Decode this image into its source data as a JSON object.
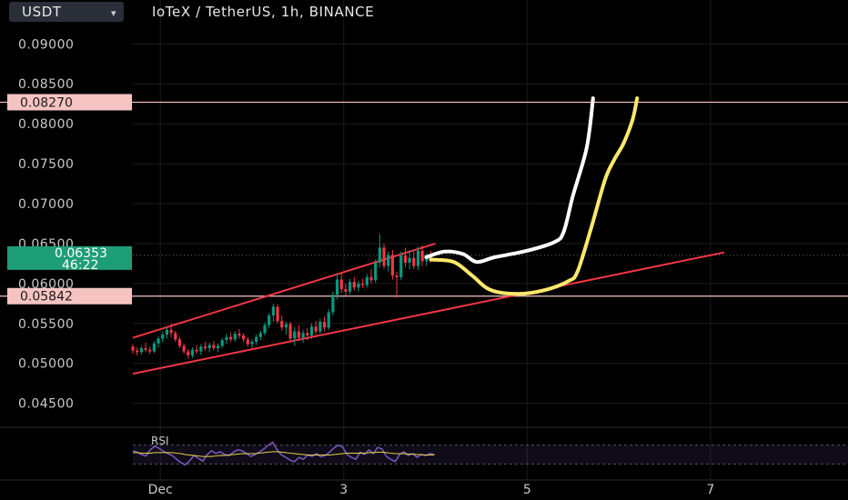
{
  "header": {
    "currency_button": "USDT",
    "title": "IoTeX / TetherUS, 1h, BINANCE"
  },
  "chart_data": {
    "type": "candlestick",
    "title": "IoTeX / TetherUS, 1h, BINANCE",
    "y_axis": {
      "range": [
        0.042,
        0.0955
      ],
      "ticks": [
        "0.04500",
        "0.05000",
        "0.05500",
        "0.06000",
        "0.06500",
        "0.07000",
        "0.07500",
        "0.08000",
        "0.08500",
        "0.09000"
      ]
    },
    "x_axis": {
      "range": [
        0.7,
        8.5
      ],
      "ticks": [
        {
          "x": 1,
          "label": "Dec"
        },
        {
          "x": 3,
          "label": "3"
        },
        {
          "x": 5,
          "label": "5"
        },
        {
          "x": 7,
          "label": "7"
        }
      ]
    },
    "grid": true,
    "horizontal_levels": [
      {
        "value": 0.0827,
        "label": "0.08270",
        "color": "#f5c4c2"
      },
      {
        "value": 0.05842,
        "label": "0.05842",
        "color": "#f5c4c2"
      }
    ],
    "last_price": {
      "value": 0.06353,
      "label": "0.06353",
      "countdown": "46:22",
      "color": "#1e9e77"
    },
    "candles_ohlc": [
      [
        0.0521,
        0.0524,
        0.0512,
        0.0516
      ],
      [
        0.0516,
        0.052,
        0.051,
        0.0514
      ],
      [
        0.0514,
        0.0522,
        0.0511,
        0.0519
      ],
      [
        0.0519,
        0.0526,
        0.0514,
        0.0517
      ],
      [
        0.0517,
        0.0521,
        0.0512,
        0.0515
      ],
      [
        0.0515,
        0.0528,
        0.0513,
        0.0525
      ],
      [
        0.0525,
        0.0534,
        0.052,
        0.0531
      ],
      [
        0.0531,
        0.054,
        0.0526,
        0.0536
      ],
      [
        0.0536,
        0.0546,
        0.0531,
        0.0542
      ],
      [
        0.0542,
        0.055,
        0.0533,
        0.0538
      ],
      [
        0.0538,
        0.0541,
        0.0527,
        0.053
      ],
      [
        0.053,
        0.0533,
        0.0519,
        0.0522
      ],
      [
        0.0522,
        0.0525,
        0.0512,
        0.0515
      ],
      [
        0.0515,
        0.0518,
        0.0506,
        0.051
      ],
      [
        0.051,
        0.052,
        0.0507,
        0.0517
      ],
      [
        0.0517,
        0.0523,
        0.0512,
        0.0515
      ],
      [
        0.0515,
        0.0524,
        0.0511,
        0.0521
      ],
      [
        0.0521,
        0.0527,
        0.0516,
        0.0519
      ],
      [
        0.0519,
        0.0526,
        0.0514,
        0.0523
      ],
      [
        0.0523,
        0.0528,
        0.0516,
        0.0519
      ],
      [
        0.0519,
        0.0525,
        0.0514,
        0.0522
      ],
      [
        0.0522,
        0.0532,
        0.0519,
        0.0529
      ],
      [
        0.0529,
        0.0537,
        0.0524,
        0.0533
      ],
      [
        0.0533,
        0.0539,
        0.0527,
        0.053
      ],
      [
        0.053,
        0.054,
        0.0527,
        0.0537
      ],
      [
        0.0537,
        0.0543,
        0.0531,
        0.0535
      ],
      [
        0.0535,
        0.0538,
        0.0527,
        0.053
      ],
      [
        0.053,
        0.0533,
        0.0521,
        0.0524
      ],
      [
        0.0524,
        0.053,
        0.0519,
        0.0527
      ],
      [
        0.0527,
        0.0536,
        0.0523,
        0.0533
      ],
      [
        0.0533,
        0.0541,
        0.0529,
        0.0538
      ],
      [
        0.0538,
        0.0551,
        0.0535,
        0.0548
      ],
      [
        0.0548,
        0.0563,
        0.0544,
        0.056
      ],
      [
        0.056,
        0.0575,
        0.0552,
        0.0571
      ],
      [
        0.0571,
        0.0574,
        0.055,
        0.0553
      ],
      [
        0.0553,
        0.056,
        0.0541,
        0.0545
      ],
      [
        0.0545,
        0.0552,
        0.0536,
        0.0549
      ],
      [
        0.0549,
        0.0552,
        0.0527,
        0.0531
      ],
      [
        0.0531,
        0.0545,
        0.0522,
        0.054
      ],
      [
        0.054,
        0.0548,
        0.0528,
        0.0532
      ],
      [
        0.0532,
        0.0542,
        0.0526,
        0.0538
      ],
      [
        0.0538,
        0.0544,
        0.0529,
        0.0535
      ],
      [
        0.0535,
        0.055,
        0.0531,
        0.0546
      ],
      [
        0.0546,
        0.0553,
        0.0536,
        0.054
      ],
      [
        0.054,
        0.0556,
        0.0537,
        0.0552
      ],
      [
        0.0552,
        0.0558,
        0.054,
        0.0545
      ],
      [
        0.0545,
        0.0568,
        0.0542,
        0.0564
      ],
      [
        0.0564,
        0.059,
        0.056,
        0.0586
      ],
      [
        0.0586,
        0.0612,
        0.058,
        0.0605
      ],
      [
        0.0605,
        0.0612,
        0.0588,
        0.0593
      ],
      [
        0.0593,
        0.06,
        0.0585,
        0.059
      ],
      [
        0.059,
        0.0606,
        0.0586,
        0.0602
      ],
      [
        0.0602,
        0.0608,
        0.0591,
        0.0595
      ],
      [
        0.0595,
        0.0603,
        0.059,
        0.06
      ],
      [
        0.06,
        0.0606,
        0.0594,
        0.0598
      ],
      [
        0.0598,
        0.0612,
        0.0595,
        0.0608
      ],
      [
        0.0608,
        0.0618,
        0.06,
        0.0604
      ],
      [
        0.0604,
        0.063,
        0.0601,
        0.0626
      ],
      [
        0.0626,
        0.0662,
        0.062,
        0.0645
      ],
      [
        0.0645,
        0.065,
        0.0618,
        0.0622
      ],
      [
        0.0622,
        0.064,
        0.0615,
        0.0636
      ],
      [
        0.0636,
        0.0642,
        0.0605,
        0.061
      ],
      [
        0.061,
        0.0615,
        0.0582,
        0.0608
      ],
      [
        0.0608,
        0.064,
        0.0604,
        0.0635
      ],
      [
        0.0635,
        0.0645,
        0.062,
        0.0626
      ],
      [
        0.0626,
        0.064,
        0.0618,
        0.0632
      ],
      [
        0.0632,
        0.064,
        0.0618,
        0.0622
      ],
      [
        0.0622,
        0.0646,
        0.0617,
        0.0641
      ],
      [
        0.0641,
        0.0648,
        0.0622,
        0.0628
      ],
      [
        0.0628,
        0.0638,
        0.0622,
        0.0635
      ],
      [
        0.0635,
        0.0641,
        0.0626,
        0.0632
      ]
    ],
    "drawings": {
      "upper_trendline": {
        "color": "#f23645",
        "points": [
          [
            0.7,
            0.0532
          ],
          [
            4.0,
            0.065
          ]
        ]
      },
      "lower_trendline": {
        "color": "#f23645",
        "points": [
          [
            0.7,
            0.0487
          ],
          [
            7.15,
            0.0639
          ]
        ]
      },
      "white_path": {
        "color": "#ffffff",
        "points": [
          [
            3.9,
            0.0633
          ],
          [
            4.1,
            0.064
          ],
          [
            4.3,
            0.0637
          ],
          [
            4.45,
            0.0627
          ],
          [
            4.65,
            0.0633
          ],
          [
            5.0,
            0.0641
          ],
          [
            5.3,
            0.0652
          ],
          [
            5.4,
            0.0665
          ],
          [
            5.5,
            0.071
          ],
          [
            5.65,
            0.077
          ],
          [
            5.72,
            0.0832
          ]
        ]
      },
      "yellow_path": {
        "color": "#ffe96b",
        "points": [
          [
            3.95,
            0.063
          ],
          [
            4.2,
            0.0627
          ],
          [
            4.4,
            0.061
          ],
          [
            4.6,
            0.0592
          ],
          [
            4.9,
            0.0587
          ],
          [
            5.2,
            0.0592
          ],
          [
            5.45,
            0.0603
          ],
          [
            5.55,
            0.0615
          ],
          [
            5.7,
            0.067
          ],
          [
            5.85,
            0.073
          ],
          [
            5.95,
            0.0755
          ],
          [
            6.05,
            0.0775
          ],
          [
            6.15,
            0.0805
          ],
          [
            6.2,
            0.0832
          ]
        ]
      }
    }
  },
  "rsi_panel": {
    "label": "RSI",
    "range": [
      0,
      100
    ],
    "band": [
      30,
      70
    ],
    "rsi_values": [
      58,
      55,
      50,
      47,
      60,
      68,
      63,
      57,
      52,
      48,
      40,
      33,
      28,
      37,
      48,
      42,
      36,
      50,
      58,
      52,
      56,
      50,
      48,
      55,
      60,
      58,
      52,
      46,
      50,
      56,
      62,
      70,
      76,
      60,
      49,
      44,
      38,
      35,
      44,
      40,
      49,
      46,
      52,
      45,
      48,
      55,
      64,
      70,
      66,
      50,
      44,
      40,
      55,
      50,
      60,
      52,
      65,
      62,
      46,
      40,
      35,
      50,
      56,
      48,
      52,
      44,
      50,
      48,
      52,
      50
    ],
    "rsi_ma": [
      54,
      54,
      53,
      53,
      53,
      54,
      54,
      54,
      54,
      54,
      53,
      52,
      50,
      49,
      48,
      47,
      46,
      46,
      46,
      47,
      48,
      48,
      49,
      50,
      51,
      52,
      52,
      52,
      52,
      53,
      54,
      55,
      56,
      56,
      55,
      54,
      53,
      52,
      51,
      50,
      49,
      49,
      49,
      49,
      49,
      49,
      50,
      51,
      52,
      53,
      53,
      53,
      53,
      53,
      54,
      54,
      55,
      55,
      54,
      53,
      52,
      52,
      52,
      51,
      51,
      50,
      50,
      49,
      49,
      49
    ],
    "rsi_color": "#7e57c2",
    "ma_color": "#e8d34a"
  },
  "colors": {
    "background": "#000000",
    "bull": "#089981",
    "bear": "#f23645",
    "grid": "#1c1c1c",
    "axis_text": "#c9c9c9"
  }
}
